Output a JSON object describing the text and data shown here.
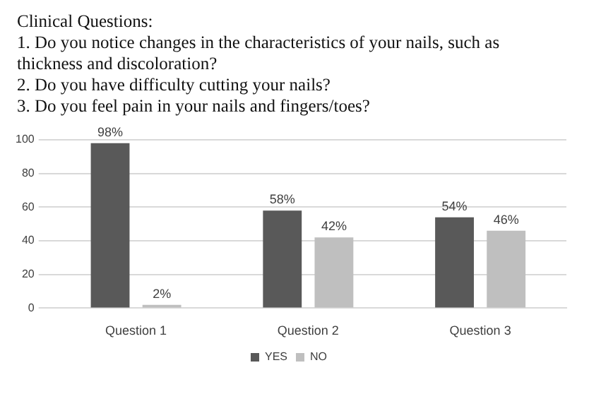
{
  "chart_data": {
    "type": "bar",
    "title": "Clinical Questions:",
    "annotations": [
      "1. Do you notice changes in the characteristics of your nails, such as thickness and discoloration?",
      "2. Do you have difficulty cutting your nails?",
      "3. Do you feel pain in your nails and fingers/toes?"
    ],
    "categories": [
      "Question 1",
      "Question 2",
      "Question 3"
    ],
    "series": [
      {
        "name": "YES",
        "color": "#595959",
        "values": [
          98,
          58,
          54
        ],
        "value_labels": [
          "98%",
          "58%",
          "54%"
        ]
      },
      {
        "name": "NO",
        "color": "#bfbfbf",
        "values": [
          2,
          42,
          46
        ],
        "value_labels": [
          "2%",
          "42%",
          "46%"
        ]
      }
    ],
    "ylim": [
      0,
      100
    ],
    "yticks": [
      0,
      20,
      40,
      60,
      80,
      100
    ],
    "grid": "y",
    "legend": "bottom"
  }
}
